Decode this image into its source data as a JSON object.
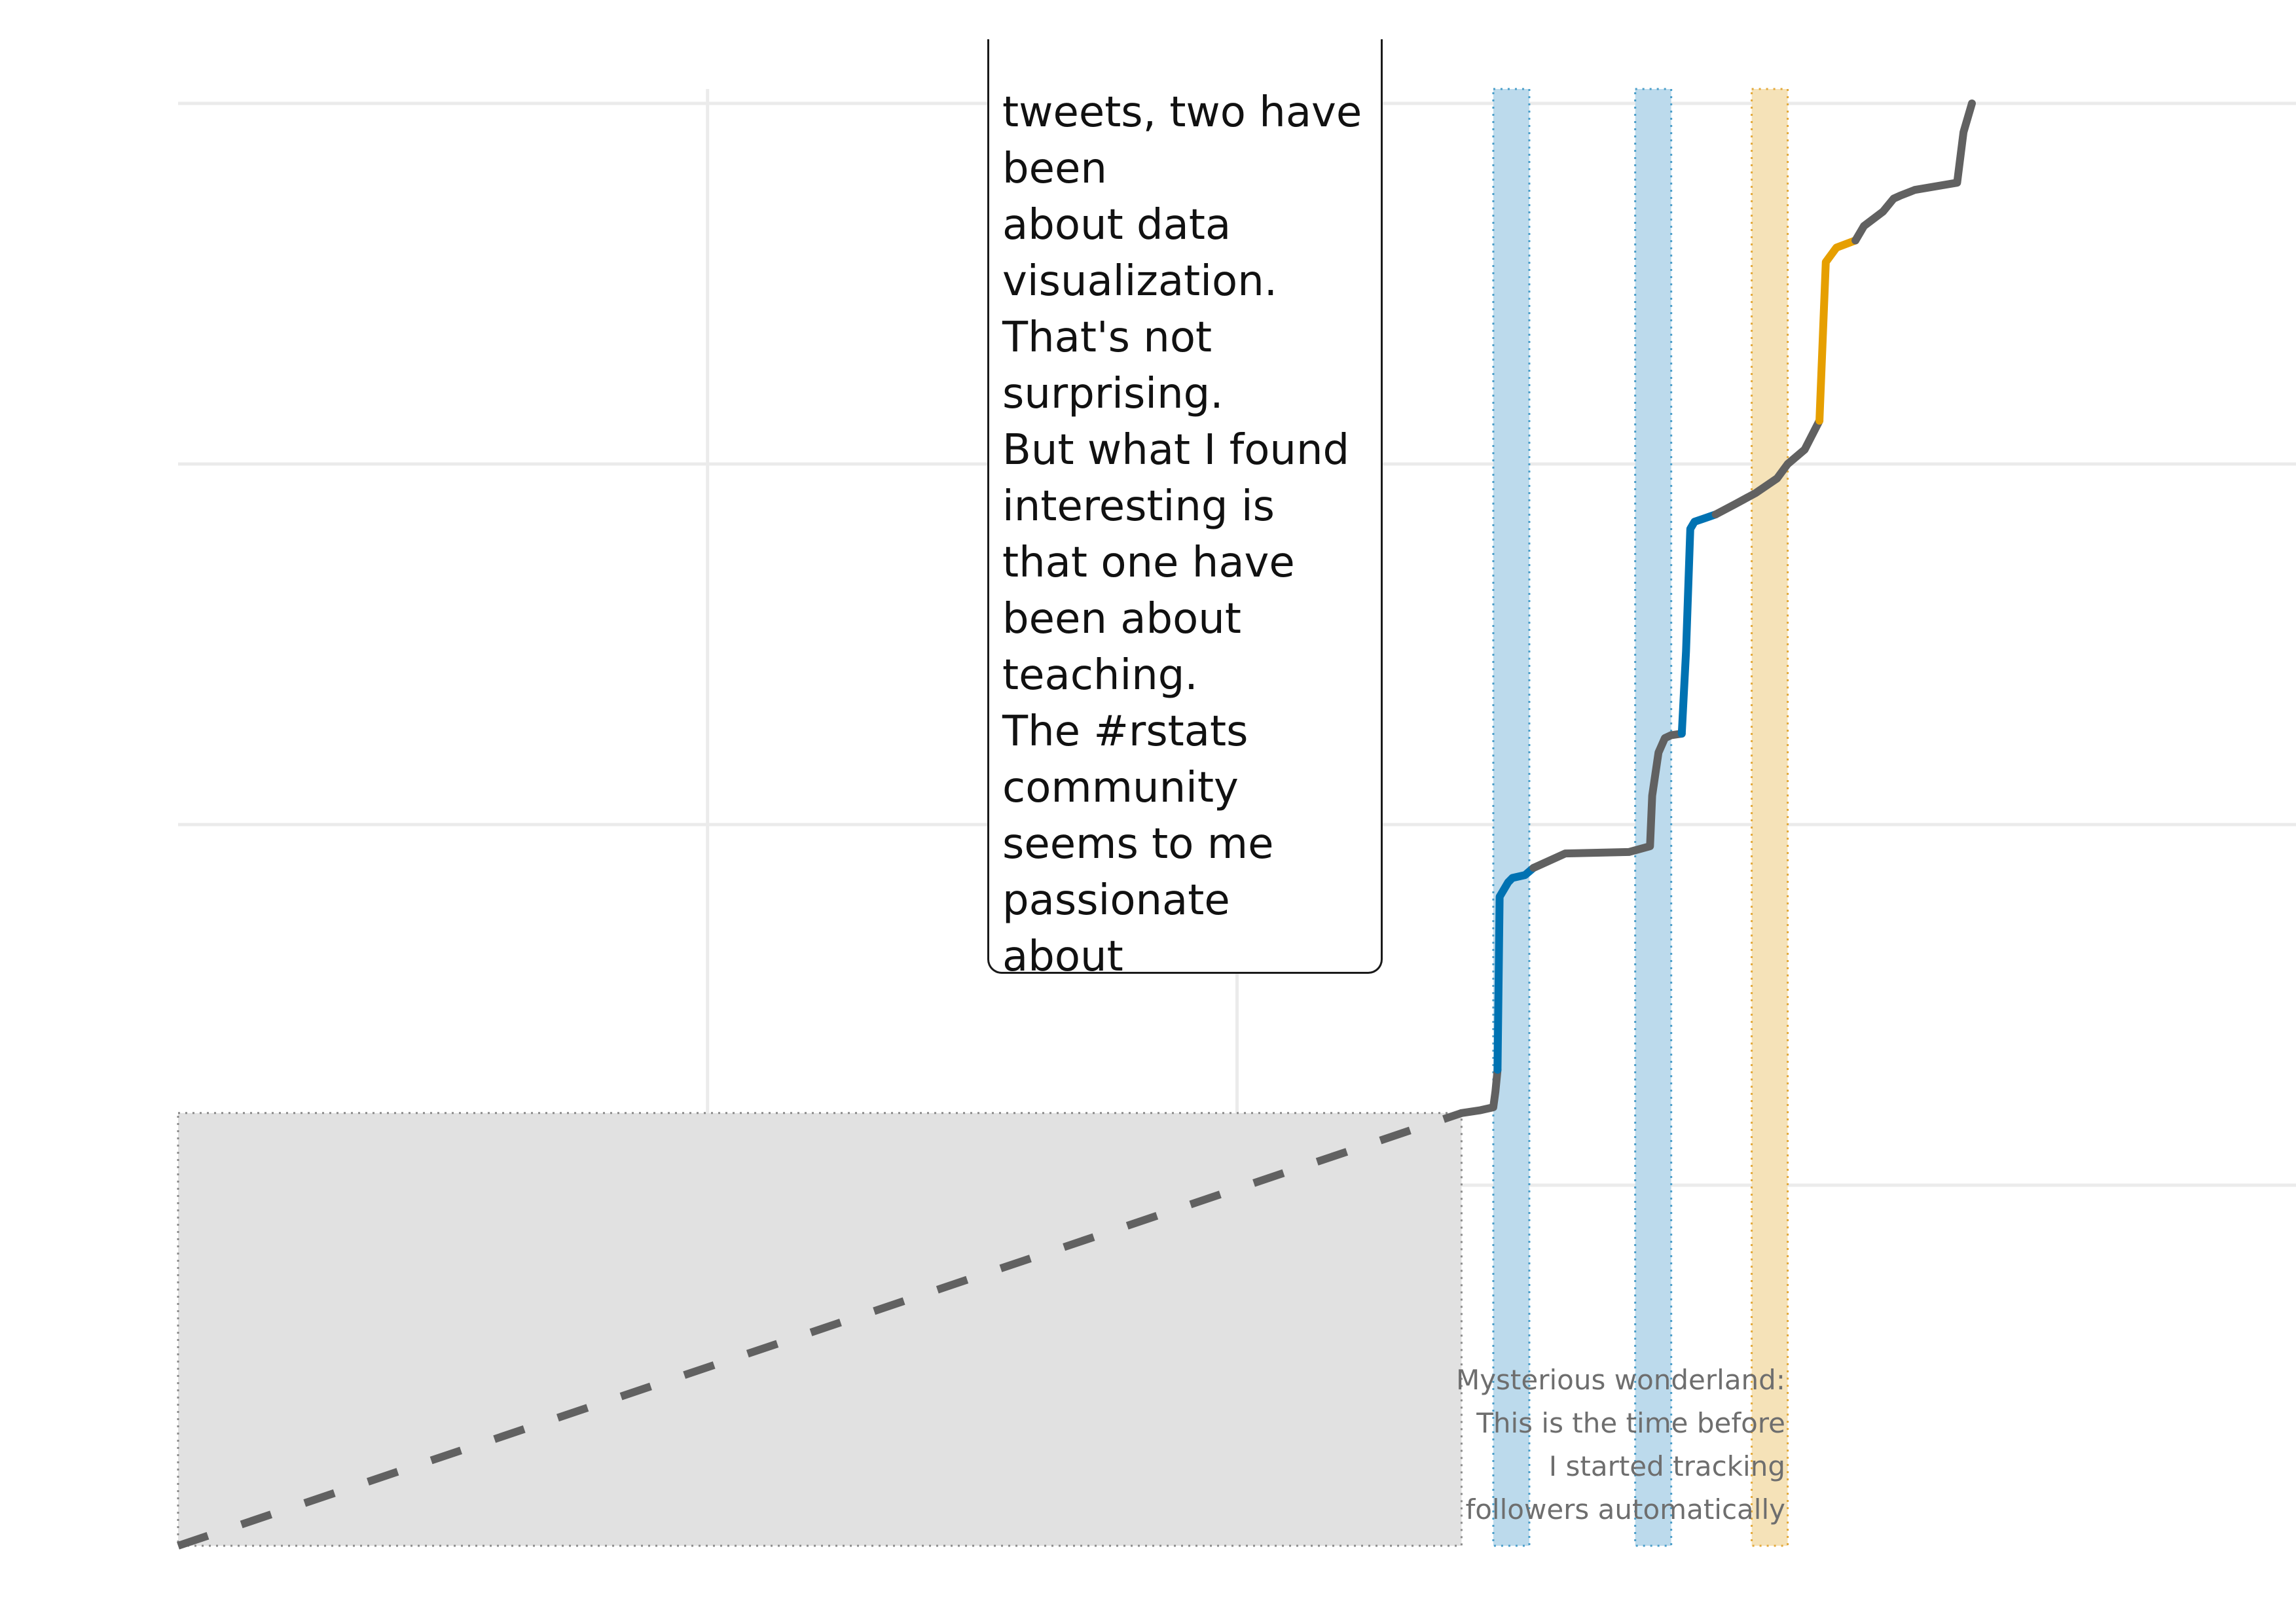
{
  "chart_data": {
    "type": "line",
    "title": "",
    "xlabel": "",
    "ylabel": "",
    "xlim": [
      0,
      100
    ],
    "ylim": [
      0,
      100
    ],
    "grid": true,
    "x_gridlines": [
      25,
      50
    ],
    "y_gridlines": [
      25,
      50,
      75,
      100
    ],
    "series": [
      {
        "style": "dashed",
        "color": "#616161",
        "x": [
          0,
          60.6
        ],
        "y": [
          0,
          30
        ]
      },
      {
        "style": "solid",
        "color": "#616161",
        "x": [
          60.6,
          61.5,
          62.1,
          62.2,
          62.3
        ],
        "y": [
          30,
          30.2,
          30.4,
          31.5,
          33
        ]
      },
      {
        "style": "solid",
        "color": "#0072b2",
        "x": [
          62.3,
          62.4,
          62.8,
          63.0,
          63.6,
          64.0
        ],
        "y": [
          33,
          45,
          46,
          46.3,
          46.5,
          47
        ]
      },
      {
        "style": "solid",
        "color": "#616161",
        "x": [
          64.0,
          65.5,
          68.5,
          69.5,
          69.6,
          69.9,
          70.2,
          70.5,
          71.0
        ],
        "y": [
          47,
          48,
          48.1,
          48.5,
          52,
          55,
          56,
          56.2,
          56.3
        ]
      },
      {
        "style": "solid",
        "color": "#0072b2",
        "x": [
          71.0,
          71.2,
          71.4,
          71.6,
          72.0,
          72.6
        ],
        "y": [
          56.3,
          62,
          70.5,
          71,
          71.2,
          71.5
        ]
      },
      {
        "style": "solid",
        "color": "#616161",
        "x": [
          72.6,
          73.5,
          74.5,
          75.5,
          76.0,
          76.8,
          77.5
        ],
        "y": [
          71.5,
          72.2,
          73,
          74,
          75,
          76,
          78
        ]
      },
      {
        "style": "solid",
        "color": "#e69f00",
        "x": [
          77.5,
          77.8,
          78.3,
          79.2
        ],
        "y": [
          78,
          89,
          90,
          90.5
        ]
      },
      {
        "style": "solid",
        "color": "#616161",
        "x": [
          79.2,
          79.6,
          80.5,
          81.0,
          81.3,
          82.0,
          84.0,
          84.3,
          84.7
        ],
        "y": [
          90.5,
          91.5,
          92.5,
          93.4,
          93.6,
          94,
          94.5,
          98,
          100
        ]
      }
    ],
    "highlight_bands": [
      {
        "x": [
          62.1,
          63.8
        ],
        "fill": "#bcdaec",
        "edge": "#4a9ec9"
      },
      {
        "x": [
          68.8,
          70.5
        ],
        "fill": "#bcdaec",
        "edge": "#4a9ec9"
      },
      {
        "x": [
          74.3,
          76.0
        ],
        "fill": "#f5e2b8",
        "edge": "#e3a93a"
      }
    ],
    "shaded_region": {
      "x": [
        0,
        60.6
      ],
      "y": [
        0,
        30
      ],
      "fill": "#e0e0e0",
      "edge": "#8a8a8a"
    },
    "annotations": {
      "wonderland": [
        "Mysterious wonderland:",
        "This is the time before",
        "I started tracking",
        "followers automatically"
      ],
      "callout": [
        "tweets, two have",
        "been",
        "about data",
        "visualization.",
        "That's not",
        "surprising.",
        "But what I found",
        "interesting is",
        "that one have",
        "been about",
        "teaching.",
        "The #rstats",
        "community",
        "seems to me",
        "passionate",
        "about"
      ]
    }
  }
}
